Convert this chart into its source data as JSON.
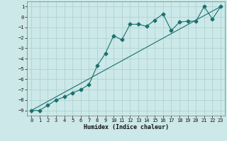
{
  "xlabel": "Humidex (Indice chaleur)",
  "ylabel": "",
  "xlim": [
    -0.5,
    23.5
  ],
  "ylim": [
    -9.5,
    1.5
  ],
  "yticks": [
    1,
    0,
    -1,
    -2,
    -3,
    -4,
    -5,
    -6,
    -7,
    -8,
    -9
  ],
  "xticks": [
    0,
    1,
    2,
    3,
    4,
    5,
    6,
    7,
    8,
    9,
    10,
    11,
    12,
    13,
    14,
    15,
    16,
    17,
    18,
    19,
    20,
    21,
    22,
    23
  ],
  "bg_color": "#cce8e8",
  "grid_color": "#aacfcf",
  "line_color": "#1a7070",
  "line1_x": [
    0,
    1,
    2,
    3,
    4,
    5,
    6,
    7,
    8,
    9,
    10,
    11,
    12,
    13,
    14,
    15,
    16,
    17,
    18,
    19,
    20,
    21,
    22,
    23
  ],
  "line1_y": [
    -9.0,
    -9.0,
    -8.5,
    -8.0,
    -7.7,
    -7.3,
    -7.0,
    -6.5,
    -4.7,
    -3.5,
    -1.8,
    -2.2,
    -0.7,
    -0.7,
    -0.9,
    -0.3,
    0.3,
    -1.3,
    -0.5,
    -0.4,
    -0.4,
    1.0,
    -0.2,
    1.0
  ],
  "line2_x": [
    0,
    23
  ],
  "line2_y": [
    -9.0,
    1.0
  ],
  "marker": "D",
  "marker_size": 2.5,
  "linewidth": 0.8
}
